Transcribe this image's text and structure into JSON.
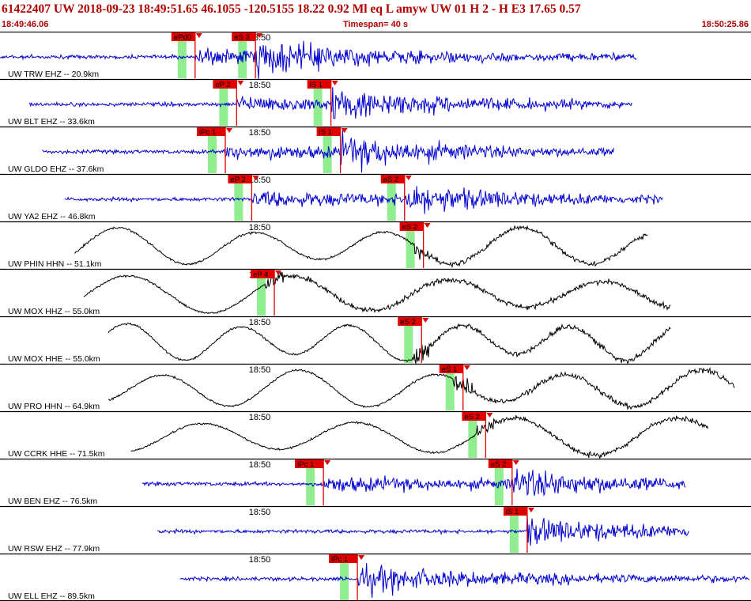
{
  "header": {
    "title": "61422407 UW 2018-09-23 18:49:51.65   46.1055 -120.5155  18.22  0.92 Ml  eq  L amyw     UW 01  H   2  -  H E3    17.65  0.57",
    "start_time": "18:49:46.06",
    "timespan": "Timespan=  40 s",
    "end_time": "18:50:25.86"
  },
  "colors": {
    "header_text": "#b00000",
    "pick_red": "#e00000",
    "pick_green": "#90ee90",
    "trace_blue": "#0000d0",
    "trace_black": "#000000",
    "separator": "#000000"
  },
  "chart_data": {
    "type": "line",
    "x_range_s": [
      46.06,
      85.86
    ],
    "time_tick_label": "18:50",
    "time_tick_s": 60,
    "series": [
      {
        "label": "UW TRW EHZ -- 20.9km",
        "color": "blue",
        "data_start": 46.06,
        "data_end": 79.8,
        "picks": [
          {
            "label": "ePd0",
            "t": 56.4
          },
          {
            "label": "eS 3",
            "t": 59.6
          }
        ]
      },
      {
        "label": "UW BLT EHZ -- 33.6km",
        "color": "blue",
        "data_start": 47.6,
        "data_end": 79.6,
        "picks": [
          {
            "label": "eP 2",
            "t": 58.6
          },
          {
            "label": "iS 1",
            "t": 63.6
          }
        ]
      },
      {
        "label": "UW GLDO EHZ -- 37.6km",
        "color": "blue",
        "data_start": 48.3,
        "data_end": 78.6,
        "picks": [
          {
            "label": "iPc 1",
            "t": 58.0
          },
          {
            "label": "iS 1",
            "t": 64.1
          }
        ]
      },
      {
        "label": "UW YA2 EHZ -- 46.8km",
        "color": "blue",
        "data_start": 49.5,
        "data_end": 81.2,
        "picks": [
          {
            "label": "eP 2",
            "t": 59.4
          },
          {
            "label": "eS 2",
            "t": 67.5
          }
        ]
      },
      {
        "label": "UW PHIN HHN -- 51.1km",
        "color": "black",
        "data_start": 50.0,
        "data_end": 80.4,
        "picks": [
          {
            "label": "eS 2",
            "t": 68.5
          }
        ]
      },
      {
        "label": "UW MOX HHZ -- 55.0km",
        "color": "black",
        "data_start": 50.5,
        "data_end": 81.6,
        "picks": [
          {
            "label": "eP 4",
            "t": 60.6
          }
        ]
      },
      {
        "label": "UW MOX HHE -- 55.0km",
        "color": "black",
        "data_start": 51.8,
        "data_end": 81.6,
        "picks": [
          {
            "label": "eS 2",
            "t": 68.4
          }
        ]
      },
      {
        "label": "UW PRO HHN -- 64.9km",
        "color": "black",
        "data_start": 51.8,
        "data_end": 85.0,
        "picks": [
          {
            "label": "eS 1",
            "t": 70.6
          }
        ]
      },
      {
        "label": "UW CCRK HHE -- 71.5km",
        "color": "black",
        "data_start": 53.0,
        "data_end": 83.6,
        "picks": [
          {
            "label": "eS 2",
            "t": 71.8
          }
        ]
      },
      {
        "label": "UW BEN EHZ -- 76.5km",
        "color": "blue",
        "data_start": 53.6,
        "data_end": 82.4,
        "picks": [
          {
            "label": "iPc 1",
            "t": 63.2
          },
          {
            "label": "eS 2",
            "t": 73.2
          }
        ]
      },
      {
        "label": "UW RSW EHZ -- 77.9km",
        "color": "blue",
        "data_start": 54.4,
        "data_end": 82.6,
        "picks": [
          {
            "label": "iS 1",
            "t": 74.0
          }
        ]
      },
      {
        "label": "UW ELL EHZ -- 89.5km",
        "color": "blue",
        "data_start": 55.6,
        "data_end": 85.8,
        "picks": [
          {
            "label": "iPc 1",
            "t": 65.0
          }
        ]
      }
    ]
  }
}
